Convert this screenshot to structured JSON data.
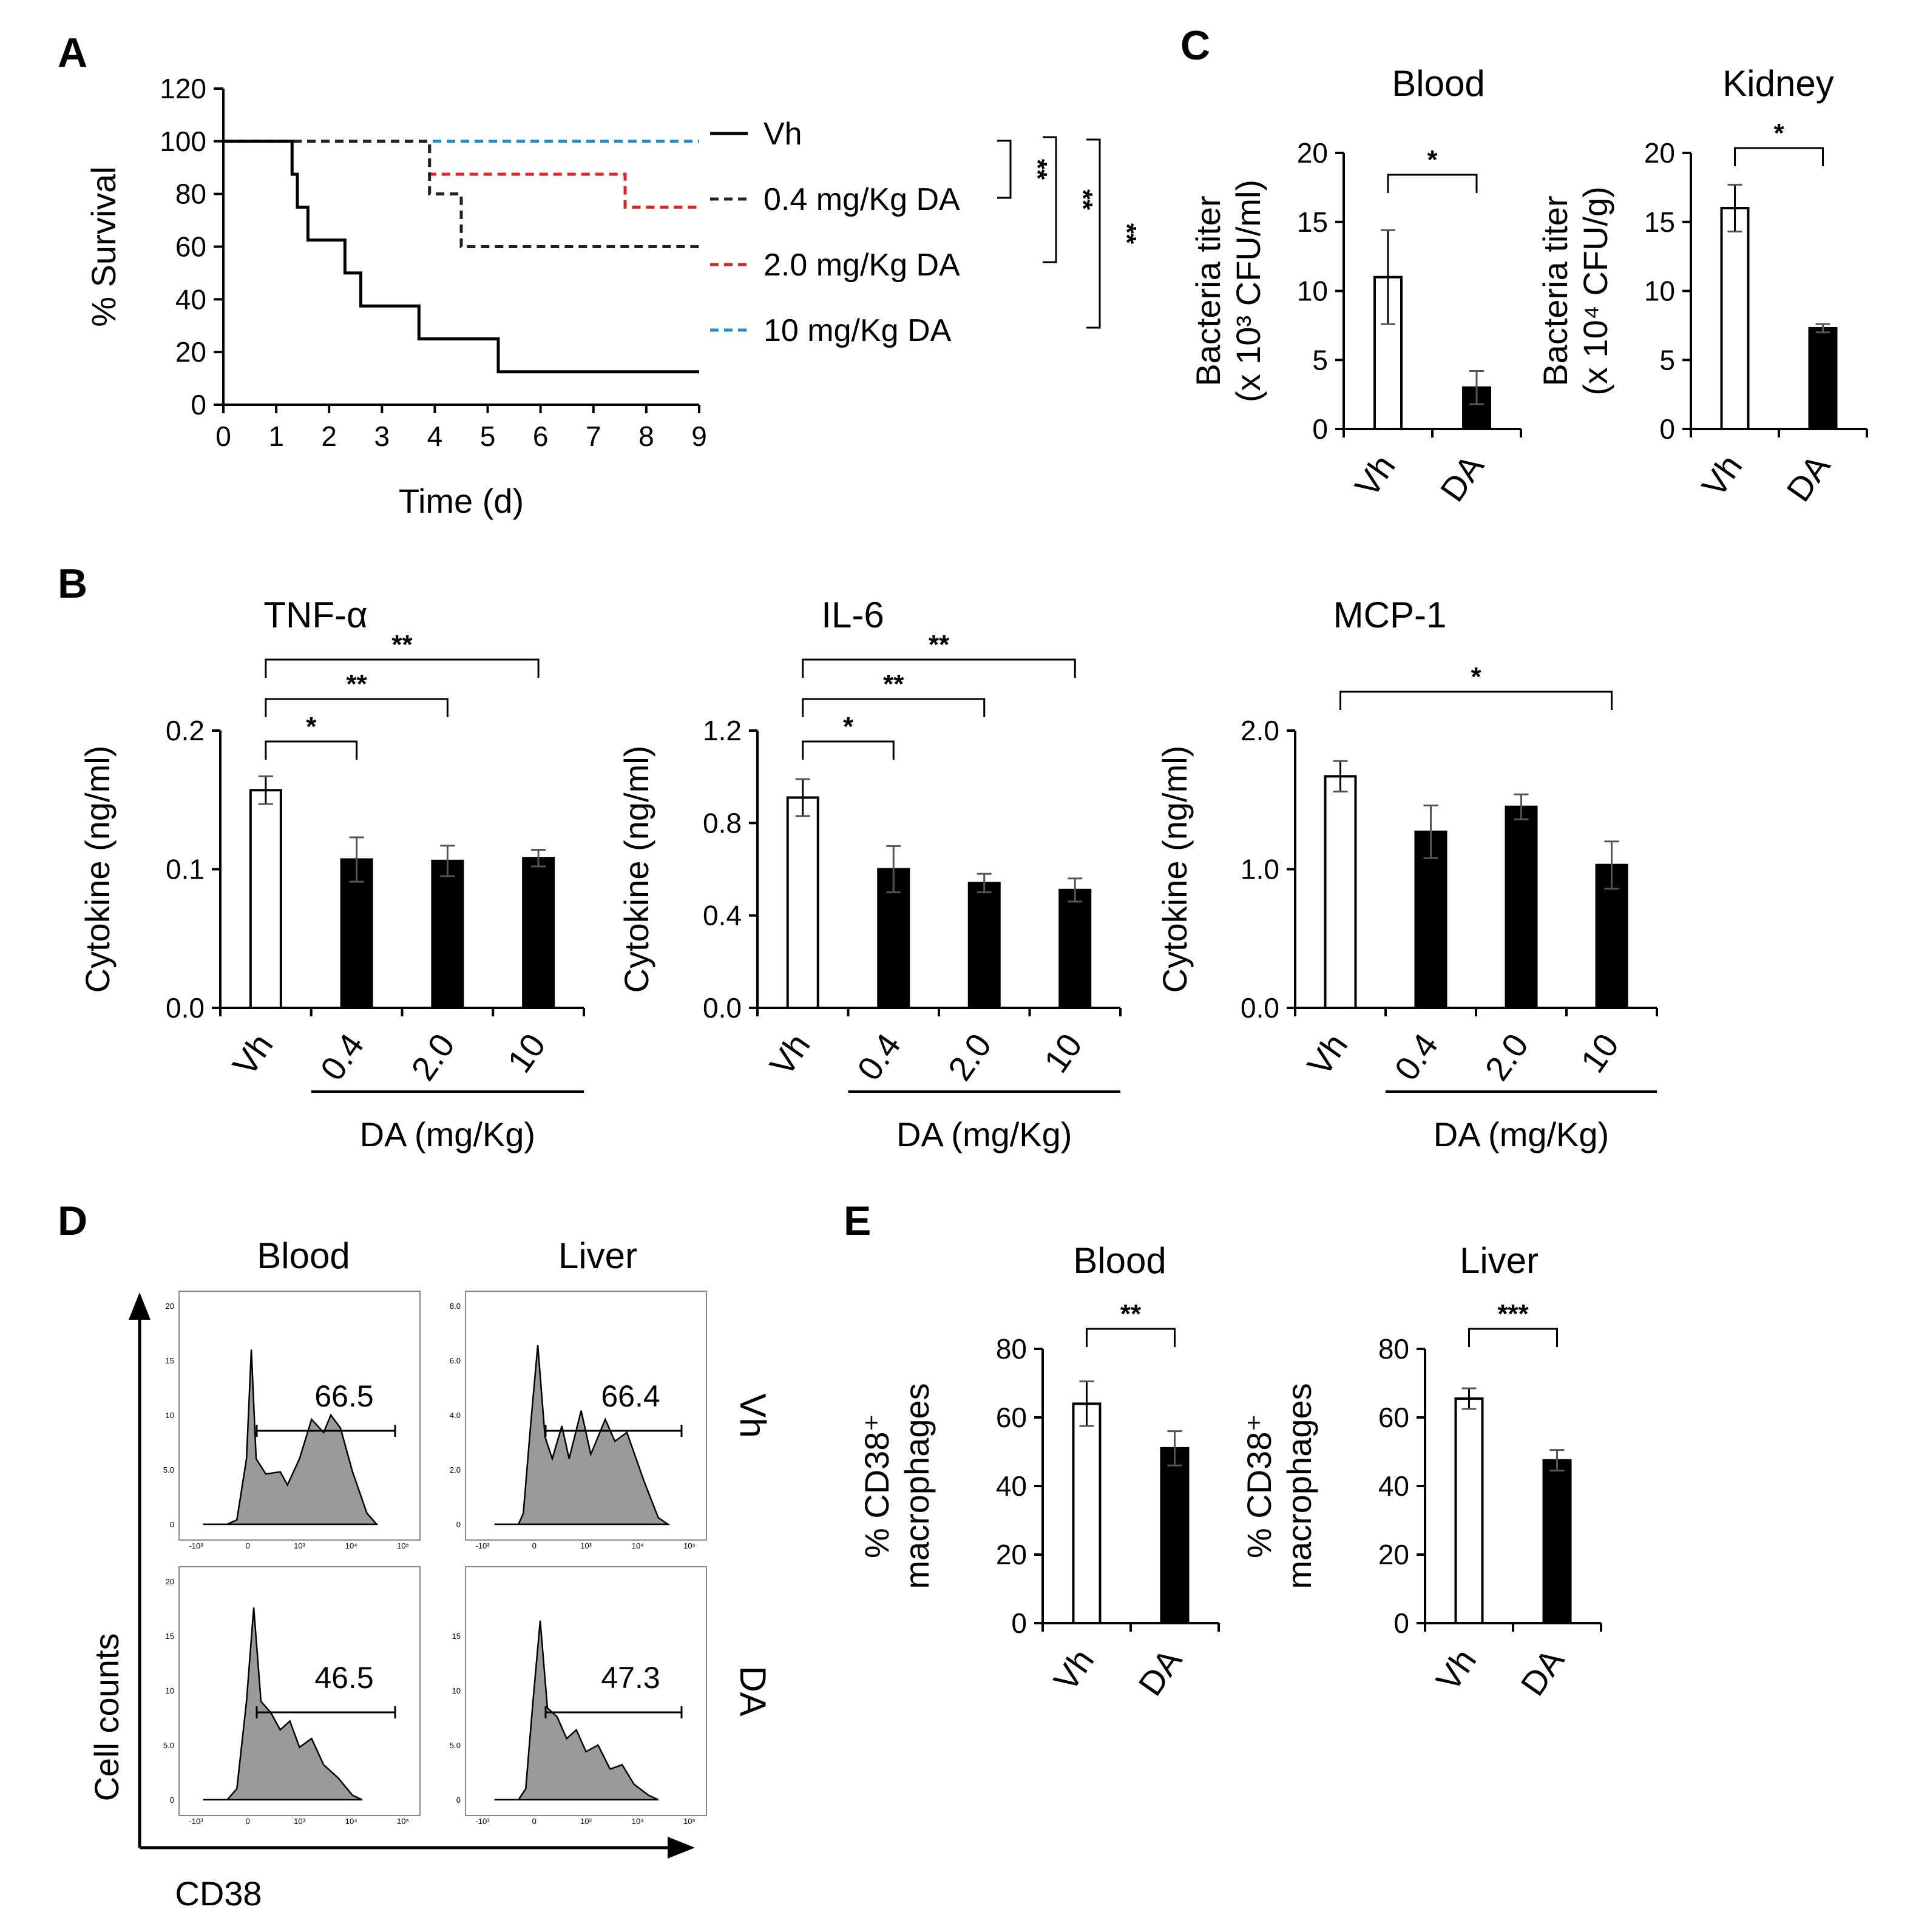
{
  "panels": {
    "A": "A",
    "B": "B",
    "C": "C",
    "D": "D",
    "E": "E"
  },
  "colors": {
    "vh": "#000000",
    "dose_0_4": "#222222",
    "dose_2_0": "#d62728",
    "dose_10": "#1f8fc6",
    "bar_dark": "#000000",
    "bar_light": "#ffffff",
    "histogram_fill": "#9a9a9a"
  },
  "chart_data": [
    {
      "id": "A",
      "type": "line",
      "step": true,
      "xlabel": "Time (d)",
      "ylabel": "% Survival",
      "xlim": [
        0,
        9
      ],
      "ylim": [
        0,
        120
      ],
      "xticks": [
        0,
        1,
        2,
        3,
        4,
        5,
        6,
        7,
        8,
        9
      ],
      "yticks": [
        0,
        20,
        40,
        60,
        80,
        100,
        120
      ],
      "series": [
        {
          "name": "Vh",
          "style": "solid",
          "color": "#000000",
          "x": [
            0,
            1.3,
            1.4,
            1.6,
            2.3,
            2.6,
            3.7,
            5.2,
            9
          ],
          "y": [
            100,
            87.5,
            75,
            62.5,
            50,
            37.5,
            25,
            12.5,
            12.5
          ]
        },
        {
          "name": "0.4 mg/Kg DA",
          "style": "dashed",
          "color": "#222222",
          "x": [
            0,
            3.9,
            4.5,
            9
          ],
          "y": [
            100,
            80,
            60,
            60
          ]
        },
        {
          "name": "2.0 mg/Kg DA",
          "style": "dashed",
          "color": "#d62728",
          "x": [
            0,
            3.9,
            7.6,
            9
          ],
          "y": [
            100,
            87.5,
            75,
            75
          ]
        },
        {
          "name": "10 mg/Kg DA",
          "style": "dashed",
          "color": "#1f8fc6",
          "x": [
            0,
            7.0,
            9
          ],
          "y": [
            100,
            100,
            100
          ]
        }
      ],
      "significance": [
        "**",
        "**",
        "**"
      ]
    },
    {
      "id": "B1",
      "type": "bar",
      "title": "TNF-α",
      "ylabel": "Cytokine (ng/ml)",
      "group_label": "DA (mg/Kg)",
      "categories": [
        "Vh",
        "0.4",
        "2.0",
        "10"
      ],
      "values": [
        0.157,
        0.107,
        0.106,
        0.108
      ],
      "errors": [
        0.01,
        0.016,
        0.011,
        0.006
      ],
      "ylim": [
        0,
        0.2
      ],
      "yticks": [
        "0.0",
        "0.1",
        "0.2"
      ],
      "brackets": [
        {
          "from": 0,
          "to": 1,
          "label": "*"
        },
        {
          "from": 0,
          "to": 2,
          "label": "**"
        },
        {
          "from": 0,
          "to": 3,
          "label": "**"
        }
      ]
    },
    {
      "id": "B2",
      "type": "bar",
      "title": "IL-6",
      "ylabel": "Cytokine (ng/ml)",
      "group_label": "DA (mg/Kg)",
      "categories": [
        "Vh",
        "0.4",
        "2.0",
        "10"
      ],
      "values": [
        0.91,
        0.6,
        0.54,
        0.51
      ],
      "errors": [
        0.08,
        0.1,
        0.04,
        0.05
      ],
      "ylim": [
        0,
        1.2
      ],
      "yticks": [
        "0.0",
        "0.4",
        "0.8",
        "1.2"
      ],
      "brackets": [
        {
          "from": 0,
          "to": 1,
          "label": "*"
        },
        {
          "from": 0,
          "to": 2,
          "label": "**"
        },
        {
          "from": 0,
          "to": 3,
          "label": "**"
        }
      ]
    },
    {
      "id": "B3",
      "type": "bar",
      "title": "MCP-1",
      "ylabel": "Cytokine (ng/ml)",
      "group_label": "DA (mg/Kg)",
      "categories": [
        "Vh",
        "0.4",
        "2.0",
        "10"
      ],
      "values": [
        1.67,
        1.27,
        1.45,
        1.03
      ],
      "errors": [
        0.11,
        0.19,
        0.09,
        0.17
      ],
      "ylim": [
        0,
        2.0
      ],
      "yticks": [
        "0.0",
        "1.0",
        "2.0"
      ],
      "brackets": [
        {
          "from": 0,
          "to": 3,
          "label": "*"
        }
      ]
    },
    {
      "id": "C1",
      "type": "bar",
      "title": "Blood",
      "ylabel": [
        "Bacteria titer",
        "(x 10³ CFU/ml)"
      ],
      "categories": [
        "Vh",
        "DA"
      ],
      "values": [
        11.0,
        3.0
      ],
      "errors": [
        3.4,
        1.2
      ],
      "ylim": [
        0,
        20
      ],
      "yticks": [
        "0",
        "5",
        "10",
        "15",
        "20"
      ],
      "brackets": [
        {
          "from": 0,
          "to": 1,
          "label": "*"
        }
      ]
    },
    {
      "id": "C2",
      "type": "bar",
      "title": "Kidney",
      "ylabel": [
        "Bacteria titer",
        "(x 10⁴ CFU/g)"
      ],
      "categories": [
        "Vh",
        "DA"
      ],
      "values": [
        16.0,
        7.3
      ],
      "errors": [
        1.7,
        0.3
      ],
      "ylim": [
        0,
        20
      ],
      "yticks": [
        "0",
        "5",
        "10",
        "15",
        "20"
      ],
      "brackets": [
        {
          "from": 0,
          "to": 1,
          "label": "*"
        }
      ]
    },
    {
      "id": "E1",
      "type": "bar",
      "title": "Blood",
      "ylabel": [
        "% CD38⁺",
        "macrophages"
      ],
      "categories": [
        "Vh",
        "DA"
      ],
      "values": [
        64,
        51
      ],
      "errors": [
        6.5,
        5
      ],
      "ylim": [
        0,
        80
      ],
      "yticks": [
        "0",
        "20",
        "40",
        "60",
        "80"
      ],
      "brackets": [
        {
          "from": 0,
          "to": 1,
          "label": "**"
        }
      ]
    },
    {
      "id": "E2",
      "type": "bar",
      "title": "Liver",
      "ylabel": [
        "% CD38⁺",
        "macrophages"
      ],
      "categories": [
        "Vh",
        "DA"
      ],
      "values": [
        65.5,
        47.5
      ],
      "errors": [
        3,
        3
      ],
      "ylim": [
        0,
        80
      ],
      "yticks": [
        "0",
        "20",
        "40",
        "60",
        "80"
      ],
      "brackets": [
        {
          "from": 0,
          "to": 1,
          "label": "***"
        }
      ]
    }
  ],
  "flow": {
    "columns": [
      "Blood",
      "Liver"
    ],
    "rows": [
      "Vh",
      "DA"
    ],
    "xlabel": "CD38",
    "ylabel": "Cell counts",
    "gates": [
      [
        "66.5",
        "66.4"
      ],
      [
        "46.5",
        "47.3"
      ]
    ],
    "xticks": [
      "-10³",
      "0",
      "10³",
      "10⁴",
      "10⁵"
    ],
    "yticks": [
      [
        [
          "0",
          "5.0",
          "10",
          "15",
          "20"
        ],
        [
          "0",
          "2.0",
          "4.0",
          "6.0",
          "8.0"
        ]
      ],
      [
        [
          "0",
          "5.0",
          "10",
          "15",
          "20"
        ],
        [
          "0",
          "5.0",
          "10",
          "15"
        ]
      ]
    ]
  }
}
